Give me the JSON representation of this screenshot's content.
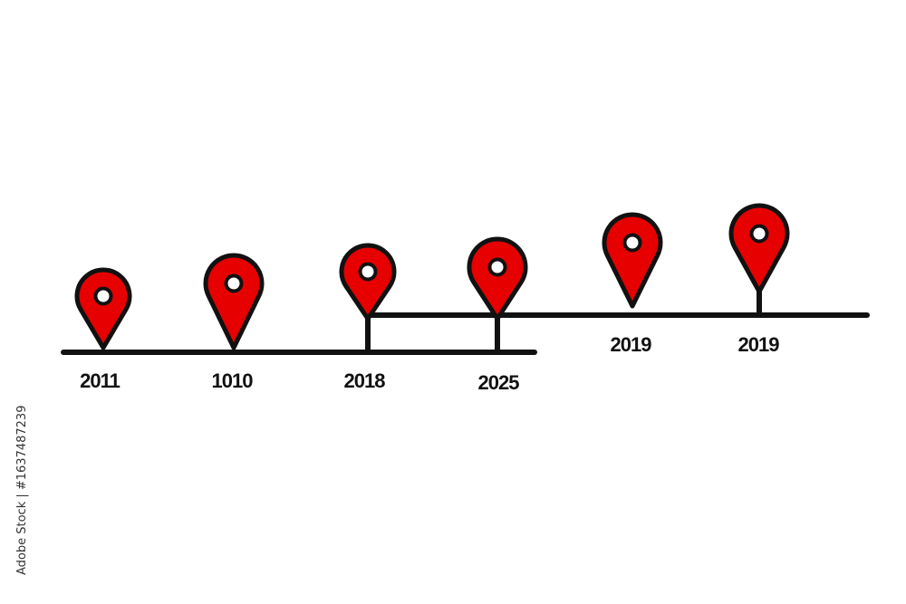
{
  "colors": {
    "pin_fill": "#e60000",
    "outline": "#111111",
    "background": "#ffffff"
  },
  "timeline": {
    "lower_labels": [
      "2011",
      "1010",
      "2018",
      "2025"
    ],
    "upper_labels": [
      "2019",
      "2019"
    ]
  },
  "icons": {
    "marker": "map-pin-icon"
  },
  "watermark": "Adobe Stock | #1637487239"
}
